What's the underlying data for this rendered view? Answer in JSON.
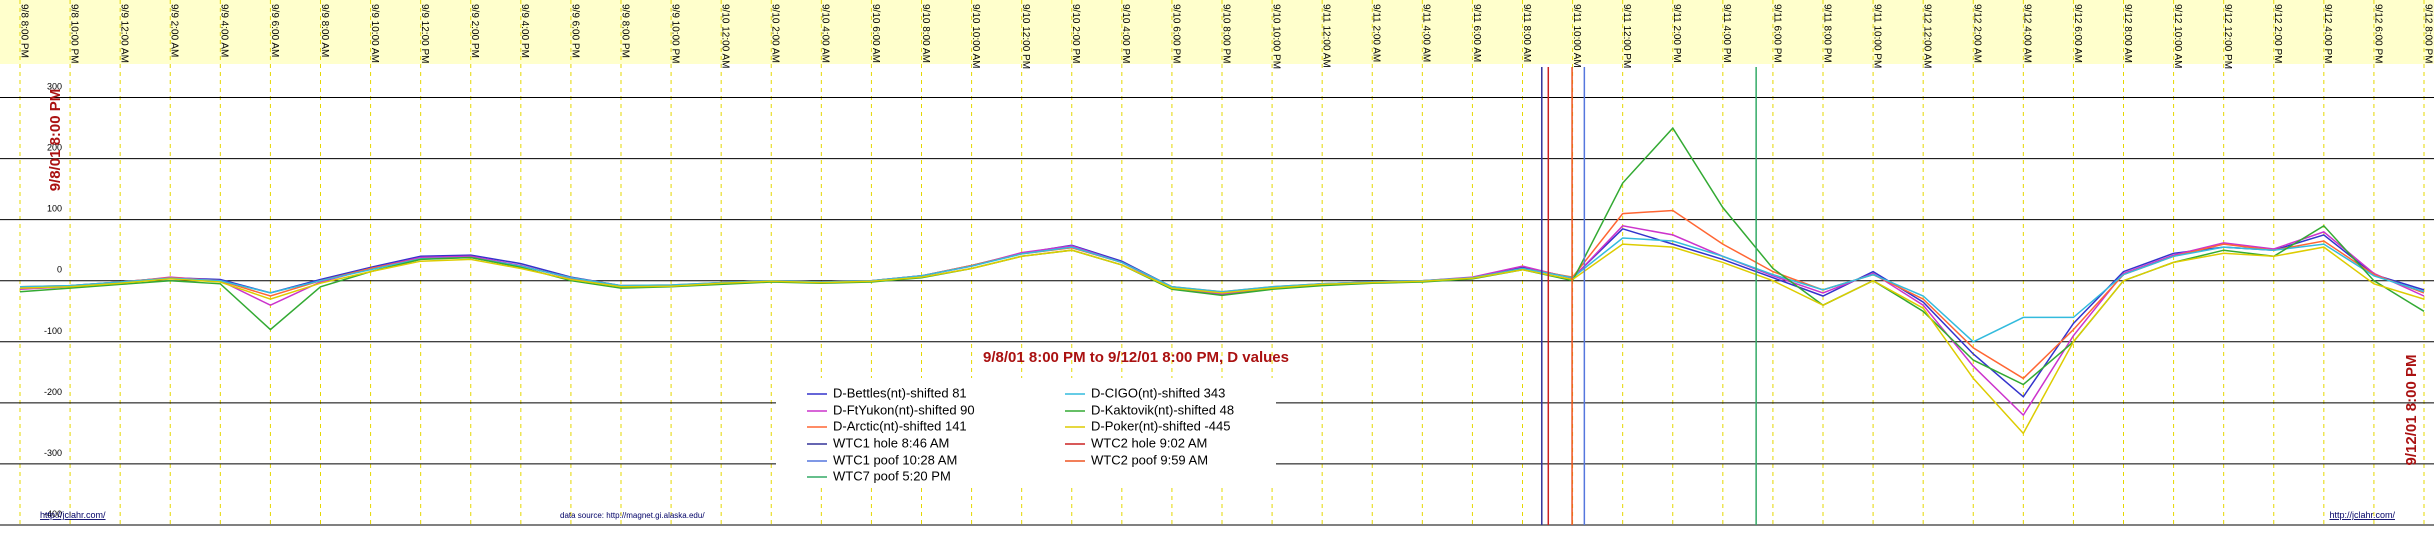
{
  "chart_data": {
    "type": "line",
    "title": "9/8/01 8:00 PM  to  9/12/01 8:00 PM, D values",
    "left_label": "9/8/01 8:00 PM",
    "right_label": "9/12/01 8:00 PM",
    "footer_left": "http://jclahr.com/",
    "footer_center": "data source: http://magnet.gi.alaska.edu/",
    "footer_right": "http://jclahr.com/",
    "grid": true,
    "xlim": [
      0,
      96
    ],
    "ylim": [
      -400,
      350
    ],
    "yticks": [
      300,
      200,
      100,
      0,
      -100,
      -200,
      -300,
      -400
    ],
    "xticks": [
      {
        "value": 0,
        "label": "9/8 8:00 PM"
      },
      {
        "value": 2,
        "label": "9/8 10:00 PM"
      },
      {
        "value": 4,
        "label": "9/9 12:00 AM"
      },
      {
        "value": 6,
        "label": "9/9 2:00 AM"
      },
      {
        "value": 8,
        "label": "9/9 4:00 AM"
      },
      {
        "value": 10,
        "label": "9/9 6:00 AM"
      },
      {
        "value": 12,
        "label": "9/9 8:00 AM"
      },
      {
        "value": 14,
        "label": "9/9 10:00 AM"
      },
      {
        "value": 16,
        "label": "9/9 12:00 PM"
      },
      {
        "value": 18,
        "label": "9/9 2:00 PM"
      },
      {
        "value": 20,
        "label": "9/9 4:00 PM"
      },
      {
        "value": 22,
        "label": "9/9 6:00 PM"
      },
      {
        "value": 24,
        "label": "9/9 8:00 PM"
      },
      {
        "value": 26,
        "label": "9/9 10:00 PM"
      },
      {
        "value": 28,
        "label": "9/10 12:00 AM"
      },
      {
        "value": 30,
        "label": "9/10 2:00 AM"
      },
      {
        "value": 32,
        "label": "9/10 4:00 AM"
      },
      {
        "value": 34,
        "label": "9/10 6:00 AM"
      },
      {
        "value": 36,
        "label": "9/10 8:00 AM"
      },
      {
        "value": 38,
        "label": "9/10 10:00 AM"
      },
      {
        "value": 40,
        "label": "9/10 12:00 PM"
      },
      {
        "value": 42,
        "label": "9/10 2:00 PM"
      },
      {
        "value": 44,
        "label": "9/10 4:00 PM"
      },
      {
        "value": 46,
        "label": "9/10 6:00 PM"
      },
      {
        "value": 48,
        "label": "9/10 8:00 PM"
      },
      {
        "value": 50,
        "label": "9/10 10:00 PM"
      },
      {
        "value": 52,
        "label": "9/11 12:00 AM"
      },
      {
        "value": 54,
        "label": "9/11 2:00 AM"
      },
      {
        "value": 56,
        "label": "9/11 4:00 AM"
      },
      {
        "value": 58,
        "label": "9/11 6:00 AM"
      },
      {
        "value": 60,
        "label": "9/11 8:00 AM"
      },
      {
        "value": 62,
        "label": "9/11 10:00 AM"
      },
      {
        "value": 64,
        "label": "9/11 12:00 PM"
      },
      {
        "value": 66,
        "label": "9/11 2:00 PM"
      },
      {
        "value": 68,
        "label": "9/11 4:00 PM"
      },
      {
        "value": 70,
        "label": "9/11 6:00 PM"
      },
      {
        "value": 72,
        "label": "9/11 8:00 PM"
      },
      {
        "value": 74,
        "label": "9/11 10:00 PM"
      },
      {
        "value": 76,
        "label": "9/12 12:00 AM"
      },
      {
        "value": 78,
        "label": "9/12 2:00 AM"
      },
      {
        "value": 80,
        "label": "9/12 4:00 AM"
      },
      {
        "value": 82,
        "label": "9/12 6:00 AM"
      },
      {
        "value": 84,
        "label": "9/12 8:00 AM"
      },
      {
        "value": 86,
        "label": "9/12 10:00 AM"
      },
      {
        "value": 88,
        "label": "9/12 12:00 PM"
      },
      {
        "value": 90,
        "label": "9/12 2:00 PM"
      },
      {
        "value": 92,
        "label": "9/12 4:00 PM"
      },
      {
        "value": 94,
        "label": "9/12 6:00 PM"
      },
      {
        "value": 96,
        "label": "9/12 8:00 PM"
      }
    ],
    "x": [
      0,
      2,
      4,
      6,
      8,
      10,
      12,
      14,
      16,
      18,
      20,
      22,
      24,
      26,
      28,
      30,
      32,
      34,
      36,
      38,
      40,
      42,
      44,
      46,
      48,
      50,
      52,
      54,
      56,
      58,
      60,
      62,
      64,
      66,
      68,
      70,
      72,
      74,
      76,
      78,
      80,
      82,
      84,
      86,
      88,
      90,
      92,
      94,
      96
    ],
    "series": [
      {
        "name": "D-Bettles(nt)-shifted 81",
        "color": "#3333cc",
        "values": [
          -12,
          -8,
          -2,
          5,
          2,
          -20,
          2,
          22,
          40,
          42,
          28,
          6,
          -8,
          -8,
          -3,
          0,
          -2,
          0,
          8,
          25,
          45,
          58,
          32,
          -10,
          -20,
          -12,
          -5,
          -2,
          0,
          5,
          22,
          5,
          85,
          60,
          35,
          5,
          -25,
          15,
          -35,
          -120,
          -190,
          -70,
          15,
          45,
          55,
          50,
          75,
          10,
          -15
        ]
      },
      {
        "name": "D-FtYukon(nt)-shifted 90",
        "color": "#cc33cc",
        "values": [
          -14,
          -10,
          -3,
          6,
          0,
          -40,
          -2,
          20,
          38,
          40,
          25,
          4,
          -10,
          -9,
          -4,
          0,
          -3,
          0,
          8,
          24,
          46,
          57,
          30,
          -12,
          -22,
          -13,
          -6,
          -3,
          0,
          6,
          24,
          4,
          90,
          75,
          40,
          8,
          -20,
          12,
          -40,
          -140,
          -220,
          -90,
          12,
          42,
          62,
          52,
          80,
          12,
          -25
        ]
      },
      {
        "name": "D-Arctic(nt)-shifted 141",
        "color": "#ff6633",
        "values": [
          -10,
          -8,
          -2,
          5,
          0,
          -25,
          0,
          20,
          36,
          38,
          24,
          5,
          -8,
          -7,
          -3,
          0,
          -2,
          0,
          8,
          25,
          44,
          54,
          30,
          -10,
          -18,
          -10,
          -5,
          -2,
          0,
          5,
          20,
          6,
          110,
          115,
          60,
          15,
          -15,
          10,
          -30,
          -110,
          -160,
          -80,
          10,
          40,
          60,
          50,
          65,
          10,
          -20
        ]
      },
      {
        "name": "D-CIGO(nt)-shifted 343",
        "color": "#33bbdd",
        "values": [
          -10,
          -8,
          -2,
          4,
          0,
          -20,
          0,
          18,
          36,
          38,
          24,
          5,
          -8,
          -7,
          -3,
          0,
          -2,
          0,
          8,
          24,
          44,
          55,
          30,
          -10,
          -18,
          -10,
          -5,
          -2,
          0,
          5,
          20,
          5,
          70,
          65,
          40,
          10,
          -15,
          10,
          -25,
          -100,
          -60,
          -60,
          10,
          40,
          55,
          50,
          60,
          8,
          -18
        ]
      },
      {
        "name": "D-Kaktovik(nt)-shifted 48",
        "color": "#33aa33",
        "values": [
          -18,
          -12,
          -6,
          0,
          -5,
          -80,
          -10,
          15,
          35,
          38,
          22,
          0,
          -12,
          -10,
          -6,
          -2,
          -4,
          -2,
          5,
          20,
          40,
          50,
          26,
          -14,
          -24,
          -14,
          -8,
          -4,
          -2,
          3,
          18,
          0,
          160,
          250,
          120,
          20,
          -40,
          0,
          -50,
          -130,
          -170,
          -100,
          0,
          30,
          50,
          40,
          90,
          0,
          -50
        ]
      },
      {
        "name": "D-Poker(nt)-shifted -445",
        "color": "#ddcc00",
        "values": [
          -12,
          -10,
          -4,
          3,
          -2,
          -30,
          -4,
          15,
          32,
          35,
          20,
          2,
          -10,
          -9,
          -4,
          -1,
          -3,
          -1,
          6,
          20,
          40,
          50,
          26,
          -12,
          -20,
          -12,
          -6,
          -3,
          -1,
          4,
          18,
          2,
          60,
          55,
          30,
          0,
          -40,
          0,
          -45,
          -160,
          -250,
          -100,
          0,
          30,
          45,
          40,
          55,
          -5,
          -30
        ]
      }
    ],
    "events": [
      {
        "name": "WTC1 hole 8:46 AM",
        "color": "#333399",
        "x": 60.77
      },
      {
        "name": "WTC1 poof 10:28 AM",
        "color": "#5577dd",
        "x": 62.47
      },
      {
        "name": "WTC7 poof 5:20 PM",
        "color": "#33aa66",
        "x": 69.33
      },
      {
        "name": "WTC2 hole 9:02 AM",
        "color": "#cc2222",
        "x": 61.03
      },
      {
        "name": "WTC2 poof 9:59 AM",
        "color": "#ee5522",
        "x": 61.98
      }
    ]
  }
}
